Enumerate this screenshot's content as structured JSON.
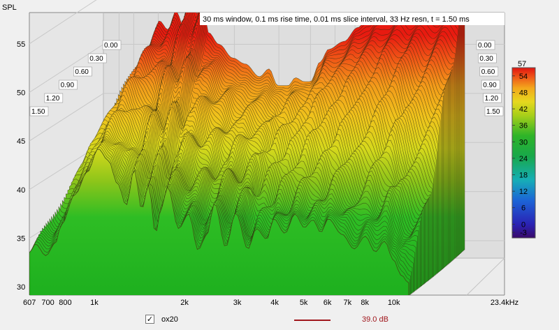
{
  "chart_data": {
    "type": "waterfall",
    "title": "30 ms window, 0.1 ms rise time, 0.01 ms slice interval, 33 Hz resn, t = 1.50 ms",
    "ylabel": "SPL",
    "xunit": "kHz",
    "xlim": [
      607,
      23400
    ],
    "ylim": [
      29.5,
      57.5
    ],
    "y_ticks": [
      30,
      35,
      40,
      45,
      50,
      55
    ],
    "x_ticks": [
      {
        "v": 607,
        "t": "607"
      },
      {
        "v": 700,
        "t": "700"
      },
      {
        "v": 800,
        "t": "800"
      },
      {
        "v": 1000,
        "t": "1k"
      },
      {
        "v": 2000,
        "t": "2k"
      },
      {
        "v": 3000,
        "t": "3k"
      },
      {
        "v": 4000,
        "t": "4k"
      },
      {
        "v": 5000,
        "t": "5k"
      },
      {
        "v": 6000,
        "t": "6k"
      },
      {
        "v": 7000,
        "t": "7k"
      },
      {
        "v": 8000,
        "t": "8k"
      },
      {
        "v": 10000,
        "t": "10k"
      },
      {
        "v": 23400,
        "t": "23.4kHz"
      }
    ],
    "time_labels": [
      "0.00",
      "0.30",
      "0.60",
      "0.90",
      "1.20",
      "1.50"
    ],
    "colorbar": {
      "max_label": "57",
      "ticks": [
        54,
        48,
        42,
        36,
        30,
        24,
        18,
        12,
        6,
        0,
        -3
      ]
    },
    "front_slice": {
      "t_ms": 1.5,
      "points": [
        [
          607,
          33.5
        ],
        [
          640,
          34.4
        ],
        [
          700,
          33.2
        ],
        [
          760,
          34.5
        ],
        [
          800,
          36.4
        ],
        [
          900,
          39.5
        ],
        [
          1000,
          41.8
        ],
        [
          1100,
          44.2
        ],
        [
          1200,
          43.0
        ],
        [
          1300,
          40.6
        ],
        [
          1400,
          38.4
        ],
        [
          1500,
          42.1
        ],
        [
          1600,
          38.0
        ],
        [
          1700,
          40.5
        ],
        [
          1800,
          35.5
        ],
        [
          1900,
          38.2
        ],
        [
          2000,
          40.3
        ],
        [
          2200,
          36.0
        ],
        [
          2400,
          37.5
        ],
        [
          2600,
          33.8
        ],
        [
          2800,
          35.3
        ],
        [
          3000,
          38.6
        ],
        [
          3300,
          34.1
        ],
        [
          3600,
          37.6
        ],
        [
          4000,
          33.9
        ],
        [
          4300,
          36.0
        ],
        [
          4700,
          34.9
        ],
        [
          5000,
          37.0
        ],
        [
          5500,
          35.5
        ],
        [
          6000,
          37.5
        ],
        [
          6500,
          36.1
        ],
        [
          7000,
          36.9
        ],
        [
          7500,
          35.6
        ],
        [
          8000,
          37.0
        ],
        [
          9000,
          35.4
        ],
        [
          10000,
          33.9
        ],
        [
          11000,
          35.2
        ],
        [
          12000,
          33.6
        ],
        [
          13000,
          34.7
        ],
        [
          14000,
          32.8
        ],
        [
          15000,
          31.2
        ],
        [
          16000,
          30.4
        ]
      ]
    },
    "back_slice": {
      "t_ms": 0.0,
      "points": [
        [
          1000,
          49.4
        ],
        [
          1100,
          52.4
        ],
        [
          1200,
          51.5
        ],
        [
          1300,
          53.4
        ],
        [
          1400,
          51.9
        ],
        [
          1500,
          55.2
        ],
        [
          1600,
          53.1
        ],
        [
          1700,
          54.2
        ],
        [
          1800,
          51.2
        ],
        [
          2000,
          50.0
        ],
        [
          2300,
          48.6
        ],
        [
          2600,
          48.0
        ],
        [
          3000,
          46.7
        ],
        [
          3300,
          47.5
        ],
        [
          3600,
          45.8
        ],
        [
          4000,
          45.8
        ],
        [
          4300,
          46.6
        ],
        [
          4700,
          46.2
        ],
        [
          5000,
          46.2
        ],
        [
          5500,
          48.2
        ],
        [
          6000,
          49.5
        ],
        [
          7000,
          50.3
        ],
        [
          8000,
          51.7
        ],
        [
          9000,
          52.8
        ],
        [
          10000,
          53.8
        ],
        [
          11000,
          54.5
        ],
        [
          13000,
          55.7
        ],
        [
          15000,
          56.3
        ],
        [
          18000,
          56.7
        ],
        [
          23400,
          56.9
        ]
      ]
    },
    "legend": [
      {
        "checked": true,
        "name": "ox20",
        "value_label": "39.0 dB",
        "color": "#a0161c"
      }
    ]
  }
}
